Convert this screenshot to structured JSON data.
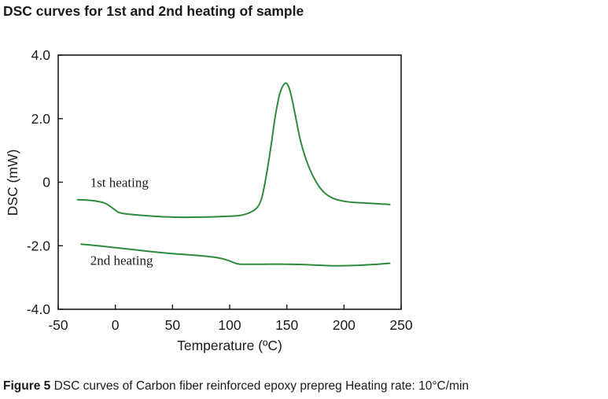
{
  "header": {
    "title": "DSC curves for 1st and 2nd heating of sample"
  },
  "caption": {
    "label": "Figure 5",
    "text": "DSC curves of Carbon fiber reinforced epoxy prepreg Heating rate: 10°C/min"
  },
  "colors": {
    "series_line": "#2e8b3c",
    "frame": "#1a1a1a",
    "text": "#1a1a1a"
  },
  "chart_data": {
    "type": "line",
    "xlabel": "Temperature (ºC)",
    "ylabel": "DSC (mW)",
    "xlim": [
      -50,
      250
    ],
    "ylim": [
      -4.0,
      4.0
    ],
    "x_ticks": [
      -50,
      0,
      50,
      100,
      150,
      200,
      250
    ],
    "x_tick_labels": [
      "-50",
      "0",
      "50",
      "100",
      "150",
      "200",
      "250"
    ],
    "y_ticks": [
      -4.0,
      -2.0,
      0,
      2.0,
      4.0
    ],
    "y_tick_labels": [
      "-4.0",
      "-2.0",
      "0",
      "2.0",
      "4.0"
    ],
    "grid": false,
    "series": [
      {
        "name": "1st heating",
        "x": [
          -33,
          -20,
          -10,
          -5,
          0,
          3,
          10,
          25,
          50,
          75,
          100,
          110,
          118,
          124,
          128,
          132,
          136,
          140,
          144,
          148,
          151,
          154,
          158,
          162,
          168,
          175,
          182,
          190,
          200,
          210,
          220,
          230,
          240
        ],
        "y": [
          -0.55,
          -0.58,
          -0.65,
          -0.75,
          -0.88,
          -0.95,
          -1.0,
          -1.05,
          -1.1,
          -1.1,
          -1.07,
          -1.04,
          -0.95,
          -0.8,
          -0.5,
          0.2,
          1.1,
          2.1,
          2.8,
          3.1,
          3.05,
          2.7,
          2.0,
          1.3,
          0.6,
          0.05,
          -0.3,
          -0.5,
          -0.6,
          -0.64,
          -0.66,
          -0.68,
          -0.7
        ]
      },
      {
        "name": "2nd heating",
        "x": [
          -30,
          -10,
          10,
          30,
          50,
          70,
          90,
          100,
          105,
          110,
          130,
          150,
          170,
          190,
          210,
          230,
          240
        ],
        "y": [
          -1.95,
          -2.02,
          -2.1,
          -2.18,
          -2.25,
          -2.3,
          -2.38,
          -2.48,
          -2.55,
          -2.58,
          -2.58,
          -2.58,
          -2.6,
          -2.63,
          -2.62,
          -2.58,
          -2.55
        ]
      }
    ],
    "annotations": [
      {
        "text": "1st heating",
        "x": -22,
        "y": -0.15
      },
      {
        "text": "2nd heating",
        "x": -22,
        "y": -2.6
      }
    ]
  }
}
